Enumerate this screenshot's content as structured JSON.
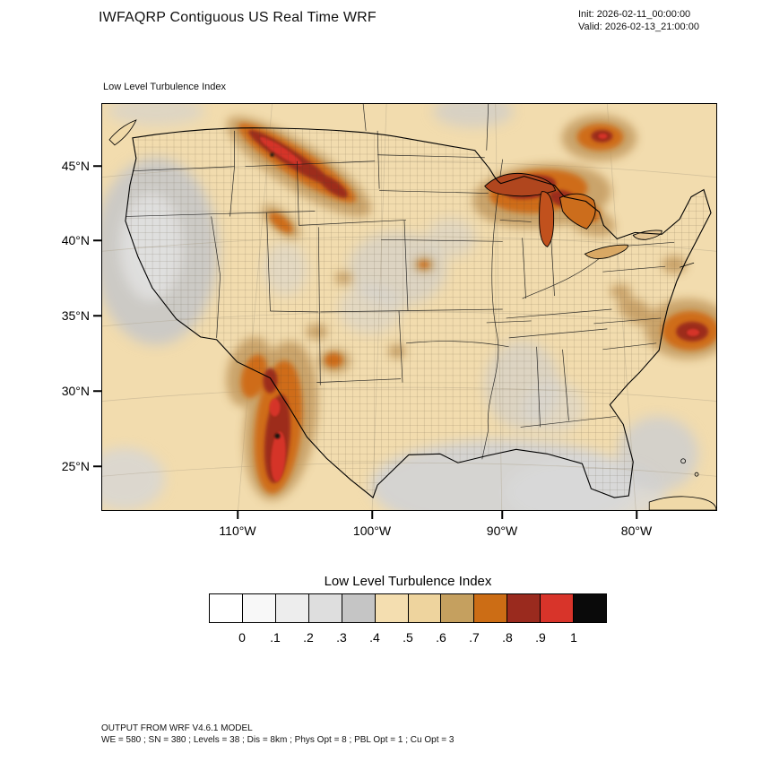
{
  "header": {
    "title": "IWFAQRP Contiguous US Real Time WRF",
    "init": "Init: 2026-02-11_00:00:00",
    "valid": "Valid: 2026-02-13_21:00:00"
  },
  "map": {
    "field_label": "Low Level Turbulence Index",
    "lat_labels": [
      "45°N",
      "40°N",
      "35°N",
      "30°N",
      "25°N"
    ],
    "lon_labels": [
      "110°W",
      "100°W",
      "90°W",
      "80°W"
    ]
  },
  "legend": {
    "title": "Low Level Turbulence Index",
    "tick_labels": [
      "0",
      ".1",
      ".2",
      ".3",
      ".4",
      ".5",
      ".6",
      ".7",
      ".8",
      ".9",
      "1"
    ],
    "cell_colors": [
      "#ffffff",
      "#f8f8f8",
      "#ededed",
      "#dedede",
      "#c5c5c5",
      "#f4deb0",
      "#eed49e",
      "#c5a05f",
      "#cc6d15",
      "#9a2a1e",
      "#d8342a",
      "#0a0a0a"
    ],
    "value_min": 0,
    "value_max": 1
  },
  "footer": {
    "line1": "OUTPUT FROM WRF V4.6.1 MODEL",
    "line2": "WE = 580 ; SN = 380 ; Levels = 38 ; Dis = 8km ; Phys Opt = 8 ; PBL Opt = 1 ; Cu Opt = 3"
  }
}
